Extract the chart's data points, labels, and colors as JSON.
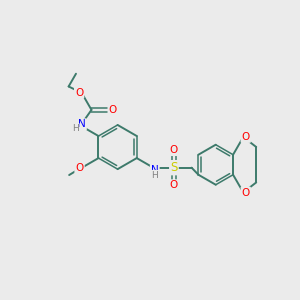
{
  "background_color": "#ebebeb",
  "atom_colors": {
    "C": "#3d7a6b",
    "N": "#0000ff",
    "O": "#ff0000",
    "S": "#cccc00",
    "H": "#808080"
  },
  "bond_color": "#3d7a6b",
  "figsize": [
    3.0,
    3.0
  ],
  "dpi": 100
}
